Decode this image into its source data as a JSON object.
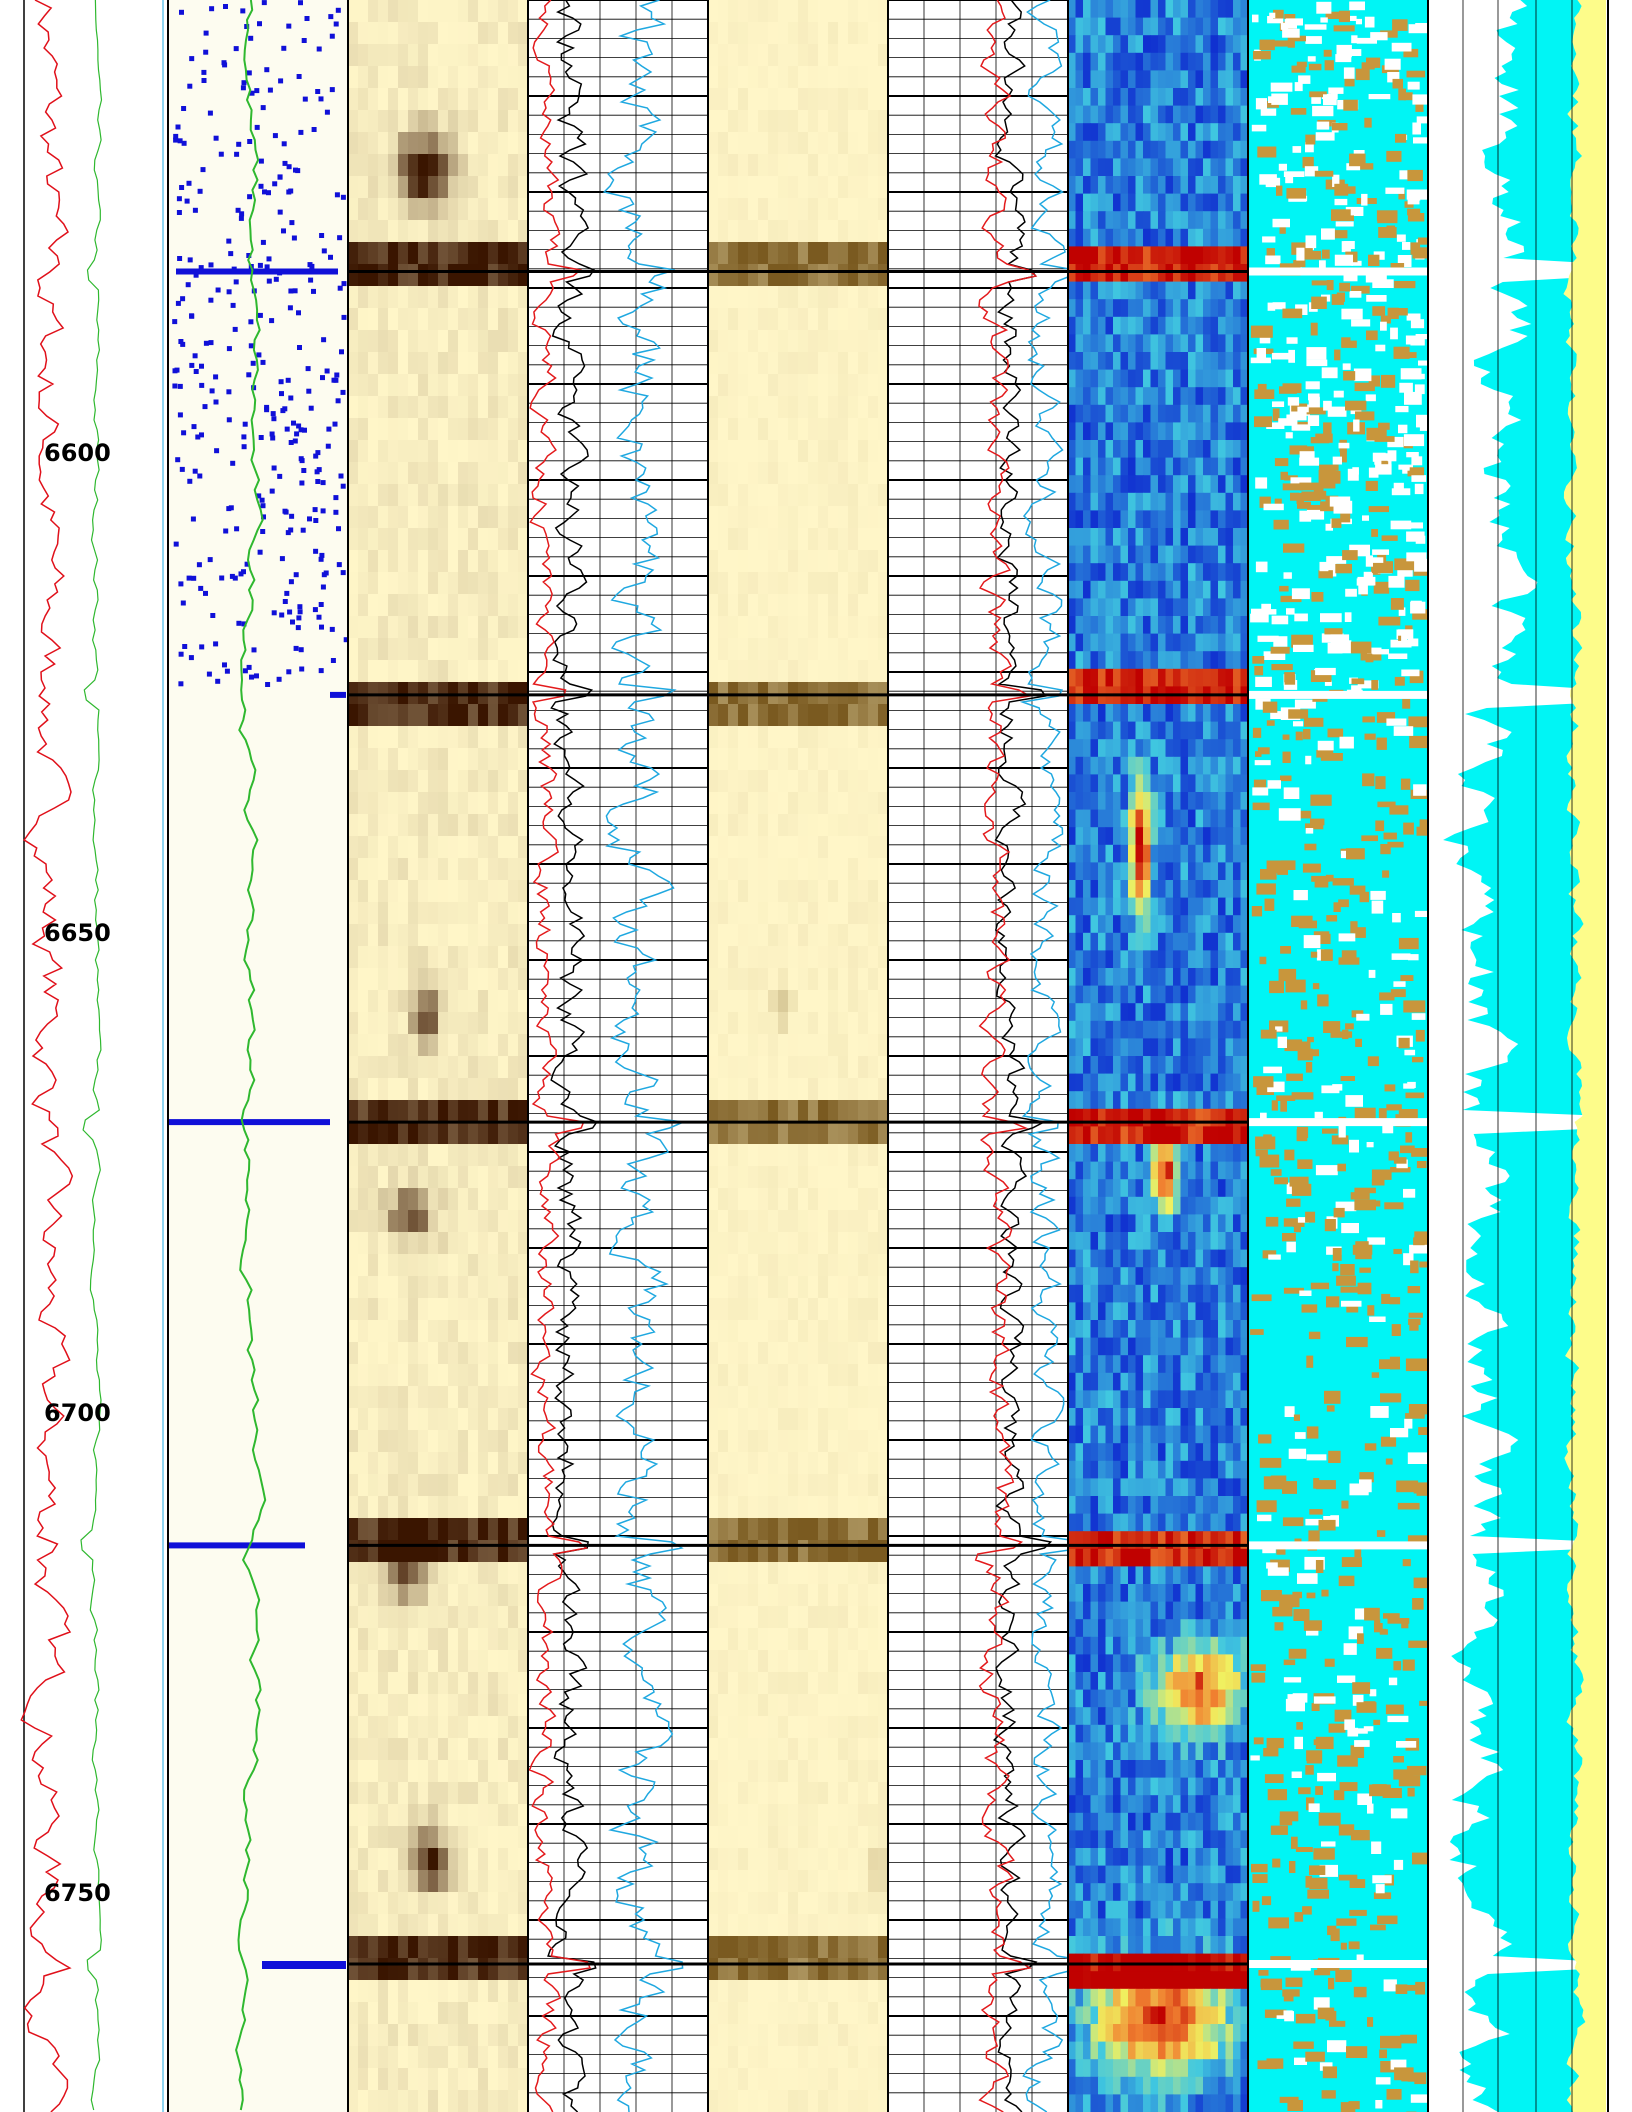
{
  "colors": {
    "page": "#ffffff",
    "depth_red": "#e0101a",
    "depth_green": "#2fb82f",
    "scatter_blue": "#1010d8",
    "scatter_bg": "#fdfcf0",
    "grid_black": "#000000",
    "curve_black": "#000000",
    "curve_red": "#e31a1c",
    "curve_cyan": "#1fa8e0",
    "fill_cyan": "#00f5f5",
    "fill_yellow": "#fdfc8a",
    "fill_brown": "#c8963c",
    "fill_white": "#ffffff",
    "heat_light": "#fff6c8",
    "heat_dark": "#3a1500",
    "jet_red": "#c00000",
    "jet_blue": "#1030d0",
    "jet_cyan": "#40c8e0"
  },
  "chart_data": {
    "type": "well-log",
    "depth_axis": {
      "ticks": [
        {
          "depth": 6600,
          "label": "6600"
        },
        {
          "depth": 6650,
          "label": "6650"
        },
        {
          "depth": 6700,
          "label": "6700"
        },
        {
          "depth": 6750,
          "label": "6750"
        }
      ],
      "range": [
        6567.3,
        6787.2
      ]
    },
    "event_depths": [
      6581.2,
      6625.3,
      6669.8,
      6713.9,
      6757.5
    ],
    "tracks": [
      {
        "name": "depth-curves",
        "type": "line"
      },
      {
        "name": "scatter-track",
        "type": "scatter"
      },
      {
        "name": "amplitude-image-1",
        "type": "heatmap"
      },
      {
        "name": "curve-grid-1",
        "type": "line"
      },
      {
        "name": "amplitude-image-2",
        "type": "heatmap"
      },
      {
        "name": "curve-grid-2",
        "type": "line"
      },
      {
        "name": "jet-image",
        "type": "heatmap"
      },
      {
        "name": "classification-image",
        "type": "heatmap"
      },
      {
        "name": "fill-curves",
        "type": "area"
      }
    ]
  }
}
